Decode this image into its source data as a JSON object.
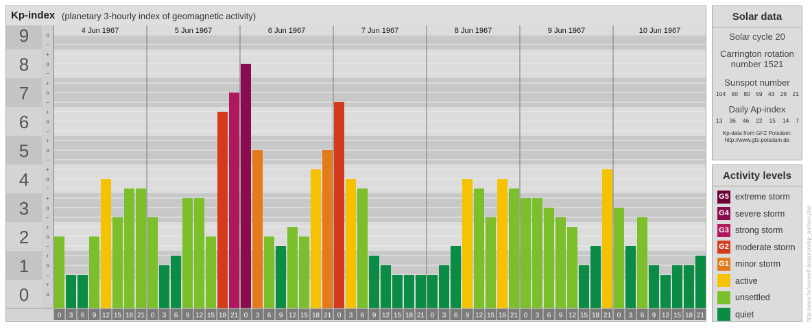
{
  "title": {
    "main": "Kp-index",
    "sub": "(planetary 3-hourly index of geomagnetic activity)"
  },
  "chart_data": {
    "type": "bar",
    "ylim": [
      0,
      9
    ],
    "y_ticks": [
      "0",
      "1",
      "2",
      "3",
      "4",
      "5",
      "6",
      "7",
      "8",
      "9"
    ],
    "minor_ticks": [
      "o",
      "+",
      "−"
    ],
    "days": [
      "4 Jun 1967",
      "5 Jun 1967",
      "6 Jun 1967",
      "7 Jun 1967",
      "8 Jun 1967",
      "9 Jun 1967",
      "10 Jun 1967"
    ],
    "interval_labels": [
      [
        "0",
        "3"
      ],
      [
        "3",
        "6"
      ],
      [
        "6",
        "9"
      ],
      [
        "9",
        "12"
      ],
      [
        "12",
        "15"
      ],
      [
        "15",
        "18"
      ],
      [
        "18",
        "21"
      ],
      [
        "21",
        "24"
      ]
    ],
    "values": [
      2.0,
      0.667,
      0.667,
      2.0,
      4.0,
      2.667,
      3.667,
      3.667,
      2.667,
      1.0,
      1.333,
      3.333,
      3.333,
      2.0,
      6.333,
      7.0,
      8.0,
      5.0,
      2.0,
      1.667,
      2.333,
      2.0,
      4.333,
      5.0,
      6.667,
      4.0,
      3.667,
      1.333,
      1.0,
      0.667,
      0.667,
      0.667,
      0.667,
      1.0,
      1.667,
      4.0,
      3.667,
      2.667,
      4.0,
      3.667,
      3.333,
      3.333,
      3.0,
      2.667,
      2.333,
      1.0,
      1.667,
      4.333,
      3.0,
      1.667,
      2.667,
      1.0,
      0.667,
      1.0,
      1.0,
      1.333
    ]
  },
  "colors": {
    "quiet": "#0a8c44",
    "unsettled": "#7bbf2b",
    "active": "#f5c200",
    "g1": "#e47a1a",
    "g2": "#d63a1c",
    "g3": "#b0175c",
    "g4": "#8b0c4e",
    "g5": "#6a0034"
  },
  "solar": {
    "heading": "Solar data",
    "cycle": "Solar cycle 20",
    "carrington_1": "Carrington rotation",
    "carrington_2": "number 1521",
    "sunspot_label": "Sunspot number",
    "sunspot_values": [
      "104",
      "90",
      "80",
      "59",
      "43",
      "26",
      "21"
    ],
    "ap_label": "Daily Ap-index",
    "ap_values": [
      "13",
      "36",
      "46",
      "22",
      "15",
      "14",
      "7"
    ],
    "credit_1": "Kp-data from GFZ Potsdam:",
    "credit_2": "http://www.gfz-potsdam.de"
  },
  "activity": {
    "heading": "Activity levels",
    "levels": [
      {
        "badge": "G5",
        "label": "extreme storm",
        "color": "#6a0034"
      },
      {
        "badge": "G4",
        "label": "severe storm",
        "color": "#8b0c4e"
      },
      {
        "badge": "G3",
        "label": "strong storm",
        "color": "#b0175c"
      },
      {
        "badge": "G2",
        "label": "moderate storm",
        "color": "#d63a1c"
      },
      {
        "badge": "G1",
        "label": "minor storm",
        "color": "#e47a1a"
      },
      {
        "badge": "",
        "label": "active",
        "color": "#f5c200"
      },
      {
        "badge": "",
        "label": "unsettled",
        "color": "#7bbf2b"
      },
      {
        "badge": "",
        "label": "quiet",
        "color": "#0a8c44"
      }
    ]
  },
  "watermark": "http://www.tiefseewelt.de/aurora/kp_archive.php"
}
